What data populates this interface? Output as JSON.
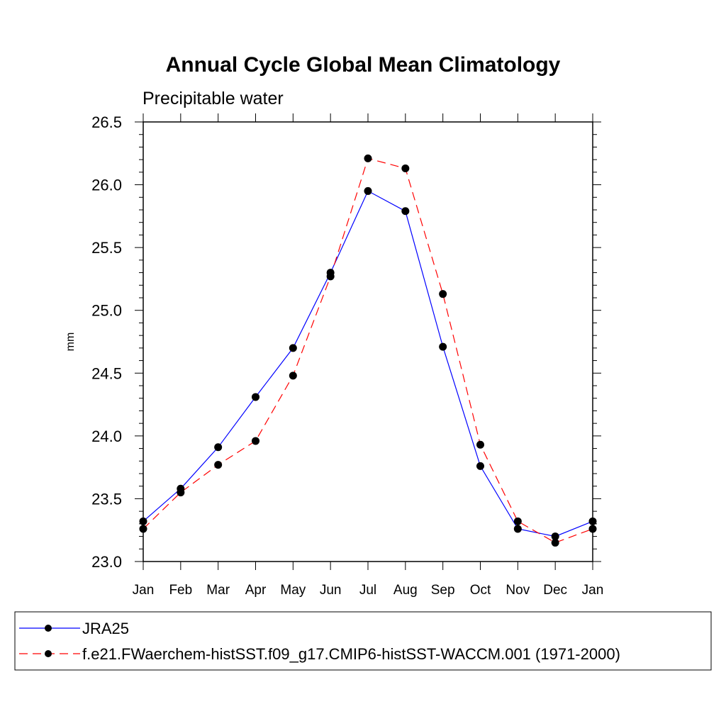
{
  "chart_data": {
    "type": "line",
    "title": "Annual Cycle Global Mean Climatology",
    "subtitle": "Precipitable water",
    "xlabel": "",
    "ylabel": "mm",
    "categories": [
      "Jan",
      "Feb",
      "Mar",
      "Apr",
      "May",
      "Jun",
      "Jul",
      "Aug",
      "Sep",
      "Oct",
      "Nov",
      "Dec",
      "Jan"
    ],
    "ylim": [
      23.0,
      26.5
    ],
    "yticks": [
      "23.0",
      "23.5",
      "24.0",
      "24.5",
      "25.0",
      "25.5",
      "26.0",
      "26.5"
    ],
    "grid": false,
    "legend_position": "bottom",
    "series": [
      {
        "name": "JRA25",
        "color": "#0000ff",
        "line_style": "solid",
        "marker": "filled-circle",
        "values": [
          23.32,
          23.58,
          23.91,
          24.31,
          24.7,
          25.3,
          25.95,
          25.79,
          24.71,
          23.76,
          23.26,
          23.2,
          23.32
        ]
      },
      {
        "name": "f.e21.FWaerchem-histSST.f09_g17.CMIP6-histSST-WACCM.001 (1971-2000)",
        "color": "#ff0000",
        "line_style": "dashed",
        "marker": "filled-circle",
        "values": [
          23.26,
          23.55,
          23.77,
          23.96,
          24.48,
          25.27,
          26.21,
          26.13,
          25.13,
          23.93,
          23.32,
          23.15,
          23.26
        ]
      }
    ]
  }
}
